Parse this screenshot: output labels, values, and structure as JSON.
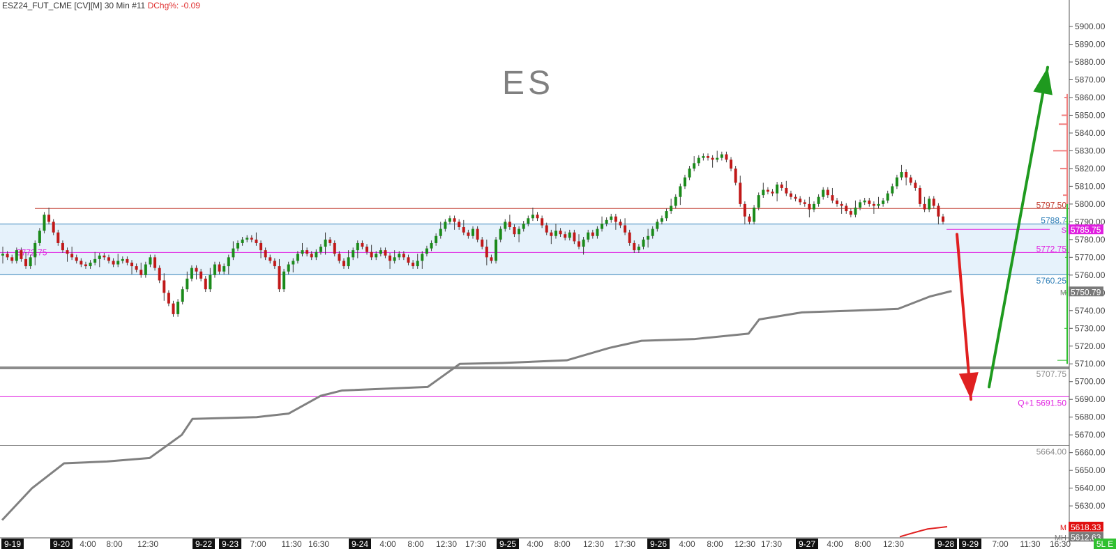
{
  "header": {
    "symbol": "ESZ24_FUT_CME [CV][M]",
    "interval": "30 Min",
    "index": "#11",
    "change_label": "DChg%:",
    "change_value": "-0.09"
  },
  "watermark": "ES",
  "chart_data": {
    "type": "candlestick",
    "y_axis": {
      "min": 5612,
      "max": 5911,
      "ticks": [
        5630,
        5640,
        5650,
        5660,
        5670,
        5680,
        5690,
        5700,
        5710,
        5720,
        5730,
        5740,
        5750,
        5760,
        5770,
        5780,
        5790,
        5800,
        5810,
        5820,
        5830,
        5840,
        5850,
        5860,
        5870,
        5880,
        5890,
        5900
      ],
      "tick_format": "0.00"
    },
    "x_axis": {
      "labels": [
        {
          "text": "9-19",
          "date": true
        },
        {
          "text": "9-20",
          "date": true
        },
        {
          "text": "4:00"
        },
        {
          "text": "8:00"
        },
        {
          "text": "12:30"
        },
        {
          "text": "9-22",
          "date": true
        },
        {
          "text": "9-23",
          "date": true
        },
        {
          "text": "7:00"
        },
        {
          "text": "11:30"
        },
        {
          "text": "16:30"
        },
        {
          "text": "9-24",
          "date": true
        },
        {
          "text": "4:00"
        },
        {
          "text": "8:00"
        },
        {
          "text": "12:30"
        },
        {
          "text": "17:30"
        },
        {
          "text": "9-25",
          "date": true
        },
        {
          "text": "4:00"
        },
        {
          "text": "8:00"
        },
        {
          "text": "12:30"
        },
        {
          "text": "17:30"
        },
        {
          "text": "9-26",
          "date": true
        },
        {
          "text": "4:00"
        },
        {
          "text": "8:00"
        },
        {
          "text": "12:30"
        },
        {
          "text": "17:30"
        },
        {
          "text": "9-27",
          "date": true
        },
        {
          "text": "4:00"
        },
        {
          "text": "8:00"
        },
        {
          "text": "12:30"
        },
        {
          "text": "9-28",
          "date": true
        },
        {
          "text": "9-29",
          "date": true
        },
        {
          "text": "7:00"
        },
        {
          "text": "11:30"
        },
        {
          "text": "16:30"
        },
        {
          "text": "5L E"
        }
      ]
    },
    "value_area": {
      "high": 5788.75,
      "low": 5760.25,
      "color": "#e6f2fb"
    },
    "levels": [
      {
        "name": "red-resistance",
        "value": 5797.5,
        "color": "#c0392b",
        "label": "5797.50"
      },
      {
        "name": "value-area-high",
        "value": 5788.75,
        "color": "#2f7fb8",
        "label": "5788.7"
      },
      {
        "name": "magenta-mid",
        "value": 5772.75,
        "color": "#e020e0",
        "label": "5772.75",
        "left_label": "5772.75"
      },
      {
        "name": "value-area-low",
        "value": 5760.25,
        "color": "#2f7fb8",
        "label": "5760.25"
      },
      {
        "name": "gray-thick",
        "value": 5707.75,
        "color": "#8c8c8c",
        "label": "5707.75"
      },
      {
        "name": "magenta-q1",
        "value": 5691.5,
        "color": "#e020e0",
        "label": "Q+1  5691.50"
      },
      {
        "name": "gray-thin",
        "value": 5664.0,
        "color": "#8c8c8c",
        "label": "5664.00"
      }
    ],
    "price_tags": [
      {
        "value": 5785.75,
        "text": "5785.75",
        "bg": "#e020e0",
        "fg": "#ffffff",
        "prefix": "S"
      },
      {
        "value": 5750.79,
        "text": "5750.79",
        "bg": "#7a7a7a",
        "fg": "#ffffff",
        "prefix": "M"
      },
      {
        "value": 5618.33,
        "text": "5618.33",
        "bg": "#e01010",
        "fg": "#ffffff",
        "prefix": "M"
      },
      {
        "value": 5612.63,
        "text": "5612.63",
        "bg": "#7a7a7a",
        "fg": "#ffffff",
        "prefix": "MH"
      }
    ],
    "candles_close": [
      5772,
      5770,
      5768,
      5774,
      5769,
      5765,
      5770,
      5778,
      5785,
      5794,
      5790,
      5784,
      5778,
      5774,
      5772,
      5770,
      5768,
      5766,
      5765,
      5767,
      5769,
      5771,
      5770,
      5768,
      5766,
      5768,
      5769,
      5767,
      5765,
      5763,
      5760,
      5766,
      5770,
      5764,
      5757,
      5750,
      5744,
      5738,
      5745,
      5752,
      5758,
      5764,
      5762,
      5758,
      5752,
      5760,
      5766,
      5762,
      5765,
      5770,
      5775,
      5778,
      5780,
      5781,
      5780,
      5778,
      5774,
      5770,
      5768,
      5765,
      5752,
      5762,
      5766,
      5768,
      5772,
      5774,
      5772,
      5770,
      5773,
      5776,
      5780,
      5778,
      5772,
      5768,
      5765,
      5770,
      5774,
      5778,
      5776,
      5773,
      5770,
      5772,
      5774,
      5771,
      5768,
      5770,
      5772,
      5770,
      5767,
      5765,
      5768,
      5772,
      5775,
      5778,
      5782,
      5786,
      5790,
      5792,
      5790,
      5787,
      5784,
      5782,
      5786,
      5780,
      5776,
      5770,
      5768,
      5780,
      5786,
      5790,
      5787,
      5783,
      5786,
      5789,
      5792,
      5794,
      5792,
      5788,
      5784,
      5782,
      5785,
      5783,
      5781,
      5784,
      5779,
      5776,
      5780,
      5784,
      5782,
      5786,
      5789,
      5791,
      5793,
      5790,
      5788,
      5784,
      5778,
      5774,
      5776,
      5780,
      5782,
      5786,
      5790,
      5792,
      5796,
      5799,
      5804,
      5810,
      5815,
      5820,
      5823,
      5826,
      5827,
      5826,
      5825,
      5826,
      5828,
      5825,
      5820,
      5812,
      5800,
      5793,
      5790,
      5798,
      5805,
      5808,
      5807,
      5806,
      5811,
      5809,
      5806,
      5804,
      5803,
      5801,
      5800,
      5797,
      5800,
      5804,
      5808,
      5805,
      5802,
      5800,
      5799,
      5796,
      5794,
      5798,
      5801,
      5802,
      5800,
      5799,
      5800,
      5802,
      5806,
      5810,
      5815,
      5818,
      5815,
      5812,
      5809,
      5800,
      5797,
      5803,
      5799,
      5793,
      5790
    ],
    "volume_profile_right": [
      {
        "price": 5860,
        "size": 4
      },
      {
        "price": 5850,
        "size": 8
      },
      {
        "price": 5845,
        "size": 12
      },
      {
        "price": 5830,
        "size": 20
      },
      {
        "price": 5820,
        "size": 10
      },
      {
        "price": 5805,
        "size": 6
      }
    ],
    "volume_profile_green": [
      {
        "price": 5790,
        "size": 3
      },
      {
        "price": 5770,
        "size": 3
      },
      {
        "price": 5750,
        "size": 6
      },
      {
        "price": 5730,
        "size": 4
      },
      {
        "price": 5712,
        "size": 14
      }
    ],
    "cumulative_line_points": [
      {
        "x_frac": 0.002,
        "price": 5622
      },
      {
        "x_frac": 0.03,
        "price": 5640
      },
      {
        "x_frac": 0.06,
        "price": 5654
      },
      {
        "x_frac": 0.1,
        "price": 5655
      },
      {
        "x_frac": 0.14,
        "price": 5657
      },
      {
        "x_frac": 0.17,
        "price": 5670
      },
      {
        "x_frac": 0.18,
        "price": 5679
      },
      {
        "x_frac": 0.24,
        "price": 5680
      },
      {
        "x_frac": 0.27,
        "price": 5682
      },
      {
        "x_frac": 0.3,
        "price": 5692
      },
      {
        "x_frac": 0.32,
        "price": 5695
      },
      {
        "x_frac": 0.4,
        "price": 5697
      },
      {
        "x_frac": 0.43,
        "price": 5710
      },
      {
        "x_frac": 0.47,
        "price": 5710.5
      },
      {
        "x_frac": 0.53,
        "price": 5712
      },
      {
        "x_frac": 0.57,
        "price": 5719
      },
      {
        "x_frac": 0.6,
        "price": 5723
      },
      {
        "x_frac": 0.65,
        "price": 5724
      },
      {
        "x_frac": 0.7,
        "price": 5727
      },
      {
        "x_frac": 0.71,
        "price": 5735
      },
      {
        "x_frac": 0.75,
        "price": 5739
      },
      {
        "x_frac": 0.8,
        "price": 5740
      },
      {
        "x_frac": 0.84,
        "price": 5741
      },
      {
        "x_frac": 0.87,
        "price": 5748
      },
      {
        "x_frac": 0.89,
        "price": 5751
      }
    ],
    "projections": [
      {
        "name": "down-arrow",
        "color": "#e02020",
        "from_price": 5783,
        "to_price": 5690
      },
      {
        "name": "up-arrow",
        "color": "#1f9a1f",
        "from_price": 5697,
        "to_price": 5877
      }
    ]
  }
}
